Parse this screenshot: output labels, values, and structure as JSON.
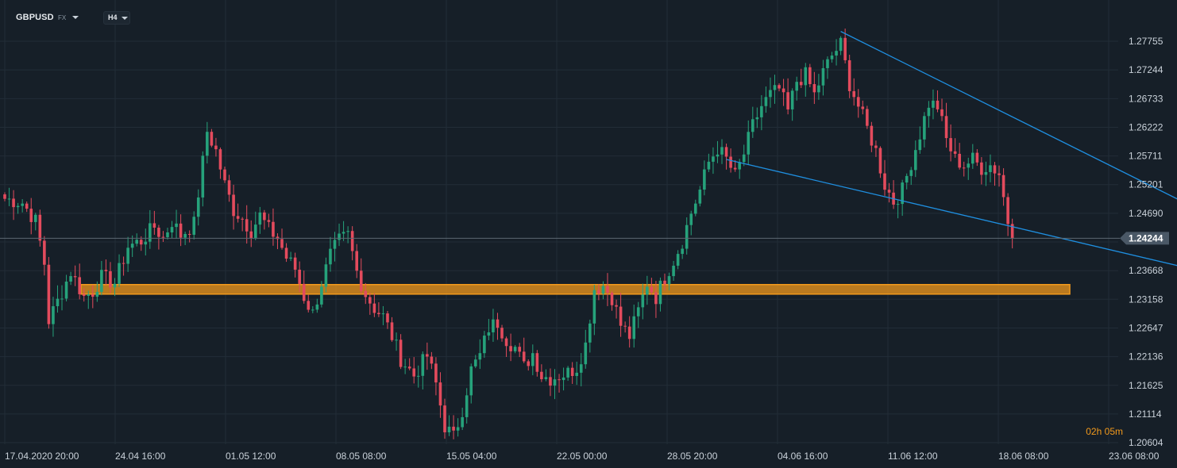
{
  "header": {
    "symbol": "GBPUSD",
    "market": "FX",
    "timeframe": "H4"
  },
  "countdown": {
    "hours": "02",
    "h_unit": "h",
    "minutes": "05",
    "m_unit": "m"
  },
  "colors": {
    "background": "#161f28",
    "grid": "#222d37",
    "bull": "#26a27b",
    "bear": "#e34b5d",
    "zone": "#f39a1c",
    "trendline": "#1f8fe0",
    "price_line": "#5c6872",
    "axis_text": "#c9d1d9",
    "price_badge": "#4a5866"
  },
  "chart_data": {
    "type": "candlestick",
    "symbol": "GBPUSD",
    "timeframe": "H4",
    "y_ticks": [
      1.27755,
      1.27244,
      1.26733,
      1.26222,
      1.25711,
      1.25201,
      1.2469,
      1.24179,
      1.23668,
      1.23158,
      1.22647,
      1.22136,
      1.21625,
      1.21114,
      1.20604
    ],
    "y_tick_labels": [
      "1.27755",
      "1.27244",
      "1.26733",
      "1.26222",
      "1.25711",
      "1.25201",
      "1.24690",
      "",
      "1.23668",
      "1.23158",
      "1.22647",
      "1.22136",
      "1.21625",
      "1.21114",
      "1.20604"
    ],
    "ylim": [
      1.2045,
      1.2812
    ],
    "x_labels": [
      "17.04.2020  20:00",
      "24.04  16:00",
      "01.05  12:00",
      "08.05  08:00",
      "15.05  04:00",
      "22.05  00:00",
      "28.05  20:00",
      "04.06  16:00",
      "11.06  12:00",
      "18.06  08:00",
      "23.06  08:00"
    ],
    "current_price": 1.24244,
    "current_price_label": "1.24244",
    "support_zone": {
      "low": 1.2325,
      "high": 1.2342
    },
    "trendlines": [
      {
        "name": "upper",
        "from": {
          "bar": 190,
          "price": 1.2793
        },
        "to": {
          "bar": 272,
          "price": 1.2473
        }
      },
      {
        "name": "lower",
        "from": {
          "bar": 164,
          "price": 1.2565
        },
        "to": {
          "bar": 274,
          "price": 1.2362
        }
      }
    ],
    "anchors": [
      [
        0,
        1.2495
      ],
      [
        4,
        1.2488
      ],
      [
        7,
        1.2455
      ],
      [
        9,
        1.238
      ],
      [
        10,
        1.2278
      ],
      [
        12,
        1.2312
      ],
      [
        15,
        1.2365
      ],
      [
        18,
        1.232
      ],
      [
        20,
        1.233
      ],
      [
        22,
        1.2355
      ],
      [
        25,
        1.2345
      ],
      [
        28,
        1.241
      ],
      [
        31,
        1.242
      ],
      [
        34,
        1.2445
      ],
      [
        36,
        1.2425
      ],
      [
        38,
        1.2455
      ],
      [
        40,
        1.243
      ],
      [
        43,
        1.245
      ],
      [
        46,
        1.2615
      ],
      [
        48,
        1.258
      ],
      [
        50,
        1.252
      ],
      [
        52,
        1.2475
      ],
      [
        54,
        1.246
      ],
      [
        56,
        1.2438
      ],
      [
        58,
        1.2465
      ],
      [
        60,
        1.244
      ],
      [
        62,
        1.2425
      ],
      [
        64,
        1.239
      ],
      [
        66,
        1.237
      ],
      [
        68,
        1.232
      ],
      [
        70,
        1.229
      ],
      [
        72,
        1.2345
      ],
      [
        74,
        1.2395
      ],
      [
        76,
        1.242
      ],
      [
        78,
        1.243
      ],
      [
        80,
        1.2365
      ],
      [
        82,
        1.2325
      ],
      [
        84,
        1.23
      ],
      [
        86,
        1.2285
      ],
      [
        88,
        1.225
      ],
      [
        90,
        1.221
      ],
      [
        93,
        1.218
      ],
      [
        96,
        1.2215
      ],
      [
        98,
        1.2165
      ],
      [
        100,
        1.209
      ],
      [
        102,
        1.207
      ],
      [
        104,
        1.212
      ],
      [
        106,
        1.219
      ],
      [
        108,
        1.2215
      ],
      [
        110,
        1.2265
      ],
      [
        112,
        1.2275
      ],
      [
        114,
        1.2245
      ],
      [
        116,
        1.223
      ],
      [
        118,
        1.2195
      ],
      [
        120,
        1.222
      ],
      [
        122,
        1.218
      ],
      [
        124,
        1.2175
      ],
      [
        126,
        1.218
      ],
      [
        128,
        1.2185
      ],
      [
        130,
        1.2195
      ],
      [
        132,
        1.2235
      ],
      [
        134,
        1.2335
      ],
      [
        136,
        1.234
      ],
      [
        138,
        1.232
      ],
      [
        140,
        1.227
      ],
      [
        142,
        1.225
      ],
      [
        144,
        1.2295
      ],
      [
        146,
        1.2345
      ],
      [
        148,
        1.232
      ],
      [
        150,
        1.2355
      ],
      [
        152,
        1.2385
      ],
      [
        154,
        1.242
      ],
      [
        156,
        1.247
      ],
      [
        158,
        1.251
      ],
      [
        160,
        1.256
      ],
      [
        162,
        1.2585
      ],
      [
        164,
        1.2565
      ],
      [
        166,
        1.2535
      ],
      [
        168,
        1.2575
      ],
      [
        170,
        1.2625
      ],
      [
        172,
        1.266
      ],
      [
        174,
        1.268
      ],
      [
        176,
        1.269
      ],
      [
        178,
        1.265
      ],
      [
        180,
        1.2705
      ],
      [
        182,
        1.2715
      ],
      [
        184,
        1.268
      ],
      [
        186,
        1.272
      ],
      [
        188,
        1.275
      ],
      [
        190,
        1.277
      ],
      [
        192,
        1.27
      ],
      [
        194,
        1.266
      ],
      [
        196,
        1.262
      ],
      [
        198,
        1.258
      ],
      [
        200,
        1.252
      ],
      [
        202,
        1.249
      ],
      [
        204,
        1.251
      ],
      [
        206,
        1.256
      ],
      [
        208,
        1.261
      ],
      [
        210,
        1.2665
      ],
      [
        212,
        1.266
      ],
      [
        214,
        1.26
      ],
      [
        216,
        1.2565
      ],
      [
        218,
        1.2555
      ],
      [
        220,
        1.2565
      ],
      [
        222,
        1.255
      ],
      [
        224,
        1.2555
      ],
      [
        226,
        1.254
      ],
      [
        228,
        1.2455
      ],
      [
        229,
        1.2425
      ]
    ]
  }
}
